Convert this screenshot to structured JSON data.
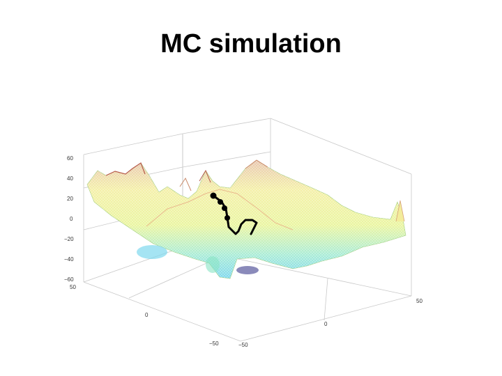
{
  "slide": {
    "title": "MC simulation"
  },
  "plot": {
    "z_ticks": [
      "60",
      "40",
      "20",
      "0",
      "−20",
      "−40",
      "−60"
    ],
    "x_ticks": [
      "−50",
      "0",
      "50"
    ],
    "y_ticks": [
      "−50",
      "0",
      "50"
    ],
    "colormap": [
      "#00008b",
      "#00bfff",
      "#7fffd4",
      "#f0e68c",
      "#ffff80",
      "#b22222"
    ],
    "path_color": "#000000"
  }
}
